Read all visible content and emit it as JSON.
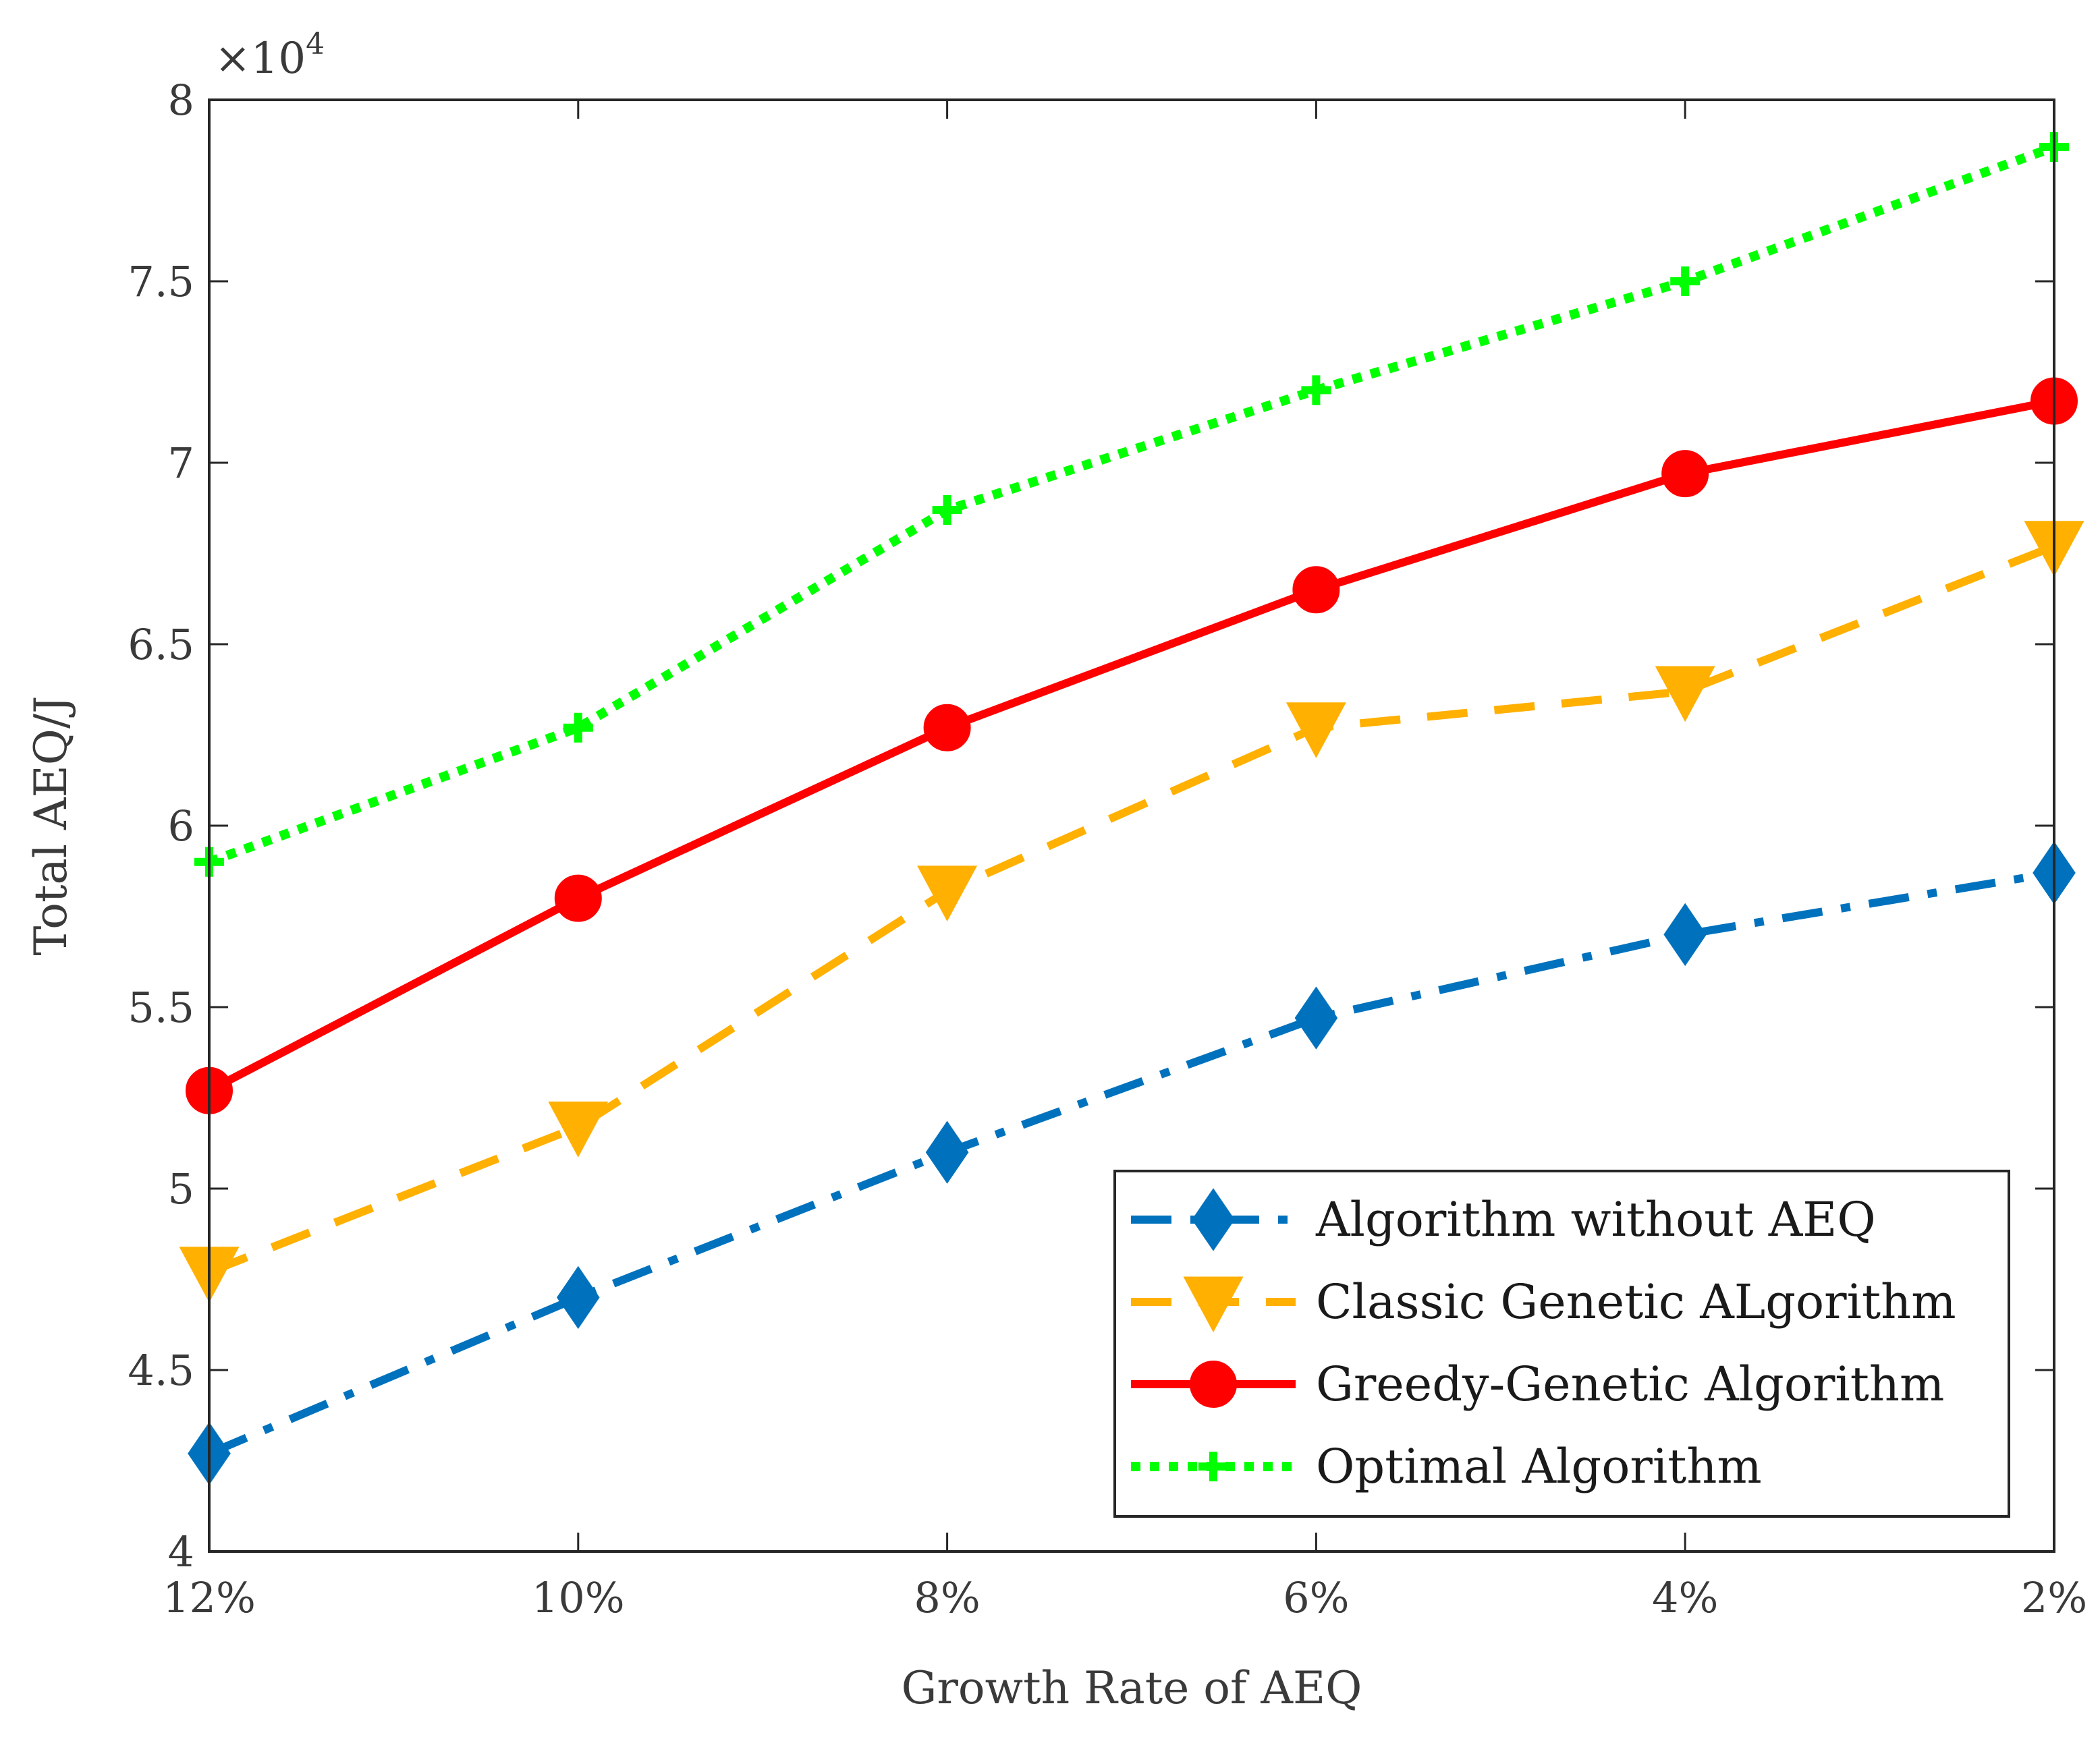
{
  "chart_data": {
    "type": "line",
    "title": "",
    "xlabel": "Growth Rate of AEQ",
    "ylabel": "Total AEQ/J",
    "y_exponent_label": "×10",
    "y_exponent_power": "4",
    "categories": [
      "12%",
      "10%",
      "8%",
      "6%",
      "4%",
      "2%"
    ],
    "ylim": [
      4,
      8
    ],
    "yticks": [
      4,
      4.5,
      5,
      5.5,
      6,
      6.5,
      7,
      7.5,
      8
    ],
    "ytick_labels": [
      "4",
      "4.5",
      "5",
      "5.5",
      "6",
      "6.5",
      "7",
      "7.5",
      "8"
    ],
    "grid": false,
    "legend_position": "bottom-right",
    "series": [
      {
        "name": "Algorithm without AEQ",
        "values": [
          4.27,
          4.7,
          5.1,
          5.47,
          5.7,
          5.87
        ],
        "color": "#0072BD",
        "dash": "dashdot",
        "marker": "diamond"
      },
      {
        "name": "Classic Genetic ALgorithm",
        "values": [
          4.77,
          5.17,
          5.82,
          6.27,
          6.37,
          6.77
        ],
        "color": "#FFB000",
        "dash": "dashed",
        "marker": "triangle-down"
      },
      {
        "name": "Greedy-Genetic Algorithm",
        "values": [
          5.27,
          5.8,
          6.27,
          6.65,
          6.97,
          7.17
        ],
        "color": "#FF0000",
        "dash": "solid",
        "marker": "circle"
      },
      {
        "name": "Optimal Algorithm",
        "values": [
          5.9,
          6.27,
          6.87,
          7.2,
          7.5,
          7.87
        ],
        "color": "#00FF00",
        "dash": "dotted",
        "marker": "plus"
      }
    ]
  }
}
